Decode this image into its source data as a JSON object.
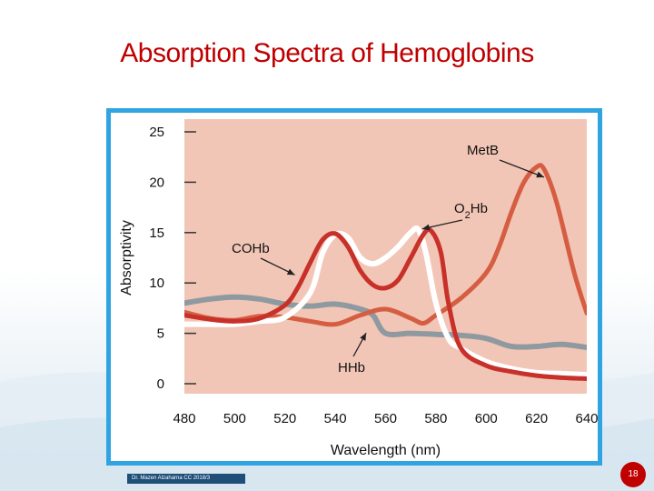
{
  "slide": {
    "title": "Absorption Spectra of Hemoglobins",
    "footer": "Dr. Mazen Alzaharna CC 2018/3",
    "page_number": "18"
  },
  "colors": {
    "accent": "#c00000",
    "frame_border": "#2fa4e1",
    "plot_background": "#f2c6b6",
    "footer_bar": "#1f4e79"
  },
  "chart_data": {
    "type": "line",
    "xlabel": "Wavelength (nm)",
    "ylabel": "Absorptivity",
    "xlim": [
      480,
      640
    ],
    "ylim": [
      0,
      25
    ],
    "xticks": [
      480,
      500,
      520,
      540,
      560,
      580,
      600,
      620,
      640
    ],
    "yticks": [
      0,
      5,
      10,
      15,
      20,
      25
    ],
    "grid": false,
    "series": [
      {
        "name": "HHb",
        "color": "#8e9aa0",
        "x": [
          480,
          490,
          500,
          510,
          520,
          530,
          540,
          550,
          555,
          560,
          570,
          580,
          590,
          600,
          610,
          620,
          630,
          640
        ],
        "y": [
          8.0,
          8.4,
          8.6,
          8.4,
          7.9,
          7.7,
          7.9,
          7.4,
          6.8,
          5.0,
          5.0,
          4.9,
          4.8,
          4.5,
          3.7,
          3.7,
          3.9,
          3.6
        ]
      },
      {
        "name": "MetB",
        "color": "#d55e42",
        "x": [
          480,
          490,
          500,
          510,
          520,
          530,
          540,
          550,
          560,
          570,
          575,
          580,
          590,
          600,
          605,
          610,
          615,
          620,
          623,
          628,
          635,
          640
        ],
        "y": [
          7.1,
          6.5,
          6.3,
          6.7,
          6.6,
          6.2,
          5.9,
          6.8,
          7.4,
          6.5,
          6.0,
          6.8,
          8.5,
          11.0,
          13.5,
          17.0,
          20.0,
          21.5,
          21.3,
          18.0,
          11.0,
          7.0
        ]
      },
      {
        "name": "COHb",
        "color": "#ffffff",
        "x": [
          480,
          490,
          500,
          510,
          520,
          530,
          535,
          540,
          545,
          550,
          555,
          560,
          565,
          570,
          573,
          576,
          580,
          585,
          590,
          600,
          610,
          620,
          630,
          640
        ],
        "y": [
          5.9,
          5.9,
          5.9,
          6.2,
          6.6,
          9.0,
          13.0,
          14.8,
          14.5,
          12.5,
          11.9,
          12.5,
          13.6,
          15.0,
          15.3,
          13.0,
          8.0,
          4.5,
          3.5,
          2.2,
          1.5,
          1.1,
          1.0,
          0.9
        ]
      },
      {
        "name": "O2Hb",
        "color": "#c8302a",
        "x": [
          480,
          490,
          500,
          510,
          520,
          525,
          530,
          535,
          540,
          545,
          550,
          555,
          560,
          565,
          570,
          575,
          578,
          582,
          585,
          590,
          600,
          610,
          620,
          630,
          640
        ],
        "y": [
          6.8,
          6.4,
          6.2,
          6.5,
          7.8,
          9.5,
          12.0,
          14.3,
          14.9,
          13.6,
          11.2,
          9.8,
          9.5,
          10.3,
          12.5,
          14.8,
          15.2,
          13.0,
          8.0,
          3.5,
          1.8,
          1.2,
          0.8,
          0.6,
          0.5
        ]
      }
    ],
    "annotations": [
      {
        "text": "MetB",
        "at_x": 623,
        "at_y": 20.5
      },
      {
        "text": "O",
        "sub": "2",
        "tail": "Hb",
        "at_x": 576,
        "at_y": 15.0
      },
      {
        "text": "COHb",
        "at_x": 525,
        "at_y": 10.8
      },
      {
        "text": "HHb",
        "at_x": 553,
        "at_y": 5.4
      }
    ]
  }
}
